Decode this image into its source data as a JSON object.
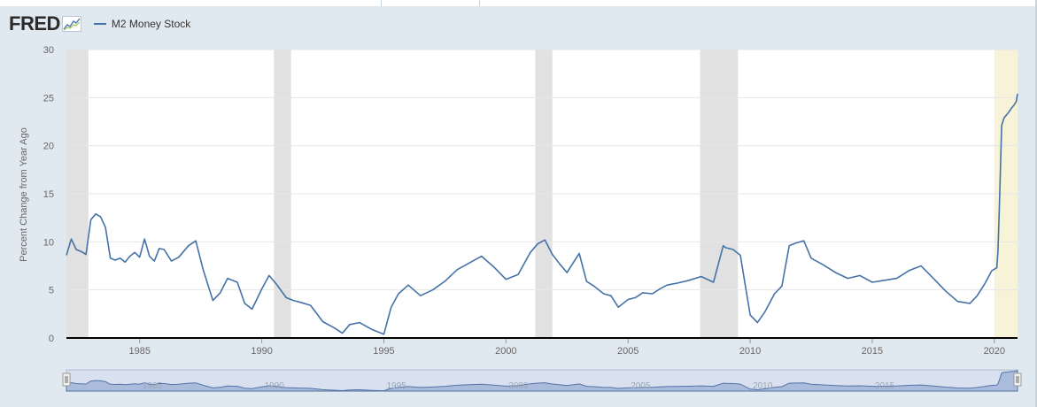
{
  "header": {
    "logo_text": "FRED",
    "legend_label": "M2 Money Stock"
  },
  "colors": {
    "series": "#4572a7",
    "recession": "#e1e1e1",
    "forecast_band": "#f6f3d9",
    "navigator_fill": "#c2cee3",
    "background": "#e1e9f0"
  },
  "chart_data": {
    "type": "line",
    "title": "",
    "ylabel": "Percent Change from Year Ago",
    "xlabel": "",
    "xlim": [
      1982.0,
      2020.95
    ],
    "ylim": [
      0,
      30
    ],
    "yticks": [
      0,
      5,
      10,
      15,
      20,
      25,
      30
    ],
    "xticks": [
      1985,
      1990,
      1995,
      2000,
      2005,
      2010,
      2015,
      2020
    ],
    "grid": true,
    "legend": "top-left",
    "recessions": [
      [
        1982.0,
        1982.9
      ],
      [
        1990.5,
        1991.2
      ],
      [
        2001.2,
        2001.9
      ],
      [
        2007.95,
        2009.5
      ]
    ],
    "highlight_band": [
      2020.0,
      2020.95
    ],
    "series": [
      {
        "name": "M2 Money Stock",
        "x": [
          1982.0,
          1982.2,
          1982.4,
          1982.6,
          1982.8,
          1983.0,
          1983.2,
          1983.4,
          1983.6,
          1983.8,
          1984.0,
          1984.2,
          1984.4,
          1984.6,
          1984.8,
          1985.0,
          1985.2,
          1985.4,
          1985.6,
          1985.8,
          1986.0,
          1986.3,
          1986.6,
          1987.0,
          1987.3,
          1987.6,
          1988.0,
          1988.3,
          1988.6,
          1989.0,
          1989.3,
          1989.6,
          1990.0,
          1990.3,
          1990.6,
          1991.0,
          1991.3,
          1991.6,
          1992.0,
          1992.5,
          1993.0,
          1993.3,
          1993.6,
          1994.0,
          1994.5,
          1995.0,
          1995.3,
          1995.6,
          1996.0,
          1996.5,
          1997.0,
          1997.5,
          1998.0,
          1998.5,
          1999.0,
          1999.5,
          2000.0,
          2000.5,
          2001.0,
          2001.3,
          2001.6,
          2001.9,
          2002.2,
          2002.5,
          2002.8,
          2003.0,
          2003.3,
          2003.6,
          2004.0,
          2004.3,
          2004.6,
          2005.0,
          2005.3,
          2005.6,
          2006.0,
          2006.3,
          2006.6,
          2007.0,
          2007.5,
          2008.0,
          2008.5,
          2008.9,
          2009.0,
          2009.3,
          2009.6,
          2010.0,
          2010.3,
          2010.6,
          2011.0,
          2011.3,
          2011.6,
          2011.9,
          2012.2,
          2012.5,
          2013.0,
          2013.5,
          2014.0,
          2014.5,
          2015.0,
          2015.5,
          2016.0,
          2016.5,
          2017.0,
          2017.5,
          2018.0,
          2018.5,
          2019.0,
          2019.3,
          2019.6,
          2019.9,
          2020.1,
          2020.15,
          2020.2,
          2020.25,
          2020.3,
          2020.4,
          2020.5,
          2020.6,
          2020.7,
          2020.8,
          2020.9,
          2020.95
        ],
        "values": [
          8.6,
          10.3,
          9.2,
          9.0,
          8.7,
          12.3,
          12.9,
          12.6,
          11.5,
          8.3,
          8.1,
          8.3,
          7.9,
          8.5,
          8.9,
          8.4,
          10.3,
          8.5,
          8.0,
          9.3,
          9.2,
          8.0,
          8.4,
          9.6,
          10.1,
          7.1,
          3.9,
          4.7,
          6.2,
          5.8,
          3.6,
          3.0,
          5.1,
          6.5,
          5.6,
          4.2,
          3.9,
          3.7,
          3.4,
          1.7,
          1.0,
          0.5,
          1.4,
          1.6,
          0.9,
          0.4,
          3.2,
          4.6,
          5.5,
          4.4,
          5.0,
          5.9,
          7.1,
          7.8,
          8.5,
          7.4,
          6.1,
          6.6,
          8.9,
          9.8,
          10.2,
          8.7,
          7.7,
          6.8,
          8.0,
          8.8,
          5.9,
          5.4,
          4.6,
          4.4,
          3.2,
          4.0,
          4.2,
          4.7,
          4.6,
          5.1,
          5.5,
          5.7,
          6.0,
          6.4,
          5.8,
          9.6,
          9.4,
          9.2,
          8.6,
          2.4,
          1.6,
          2.7,
          4.6,
          5.4,
          9.6,
          9.9,
          10.1,
          8.3,
          7.6,
          6.8,
          6.2,
          6.5,
          5.8,
          6.0,
          6.2,
          7.0,
          7.5,
          6.2,
          4.9,
          3.8,
          3.6,
          4.4,
          5.6,
          7.0,
          7.3,
          9.0,
          13.0,
          17.5,
          22.1,
          22.9,
          23.2,
          23.5,
          23.9,
          24.2,
          24.6,
          25.4
        ]
      }
    ]
  }
}
